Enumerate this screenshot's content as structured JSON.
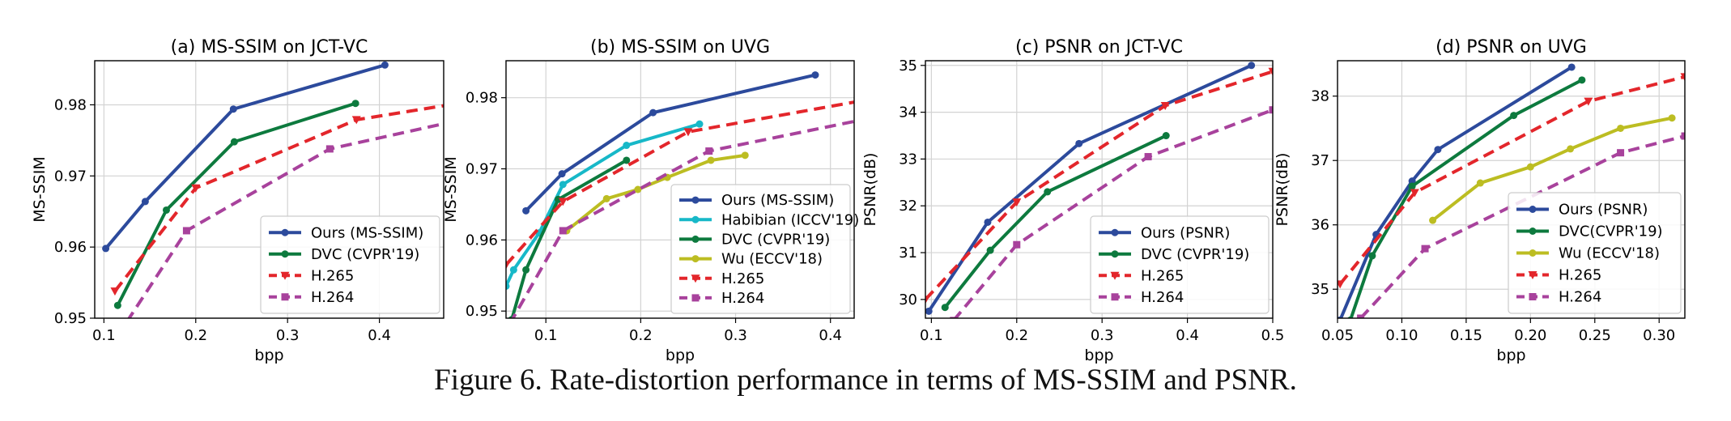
{
  "caption": "Figure 6. Rate-distortion performance in terms of MS-SSIM and PSNR.",
  "chart_data": [
    {
      "type": "line",
      "title": "(a) MS-SSIM on JCT-VC",
      "xlabel": "bpp",
      "ylabel": "MS-SSIM",
      "xlim": [
        0.09,
        0.47
      ],
      "ylim": [
        0.95,
        0.9862
      ],
      "xticks": [
        0.1,
        0.2,
        0.3,
        0.4
      ],
      "xtick_labels": [
        "0.1",
        "0.2",
        "0.3",
        "0.4"
      ],
      "yticks": [
        0.95,
        0.96,
        0.97,
        0.98
      ],
      "ytick_labels": [
        "0.95",
        "0.96",
        "0.97",
        "0.98"
      ],
      "grid": true,
      "legend_position": "lower-right",
      "series": [
        {
          "name": "Ours (MS-SSIM)",
          "color": "#2c4a9c",
          "style": "solid",
          "marker": "circle",
          "x": [
            0.102,
            0.145,
            0.241,
            0.406
          ],
          "y": [
            0.9598,
            0.9664,
            0.9794,
            0.9856
          ]
        },
        {
          "name": "DVC (CVPR'19)",
          "color": "#0d7a3e",
          "style": "solid",
          "marker": "circle",
          "x": [
            0.115,
            0.168,
            0.242,
            0.374
          ],
          "y": [
            0.9518,
            0.9652,
            0.9748,
            0.9802
          ]
        },
        {
          "name": "H.265",
          "color": "#e3262b",
          "style": "dashed",
          "marker": "triangle",
          "x": [
            0.112,
            0.2,
            0.375,
            0.5
          ],
          "y": [
            0.9538,
            0.9683,
            0.9779,
            0.9805
          ]
        },
        {
          "name": "H.264",
          "color": "#a8429c",
          "style": "dashed",
          "marker": "square",
          "x": [
            0.125,
            0.19,
            0.346,
            0.5
          ],
          "y": [
            0.9495,
            0.9623,
            0.9738,
            0.9782
          ]
        }
      ]
    },
    {
      "type": "line",
      "title": "(b) MS-SSIM on UVG",
      "xlabel": "bpp",
      "ylabel": "MS-SSIM",
      "xlim": [
        0.058,
        0.425
      ],
      "ylim": [
        0.949,
        0.9852
      ],
      "xticks": [
        0.1,
        0.2,
        0.3,
        0.4
      ],
      "xtick_labels": [
        "0.1",
        "0.2",
        "0.3",
        "0.4"
      ],
      "yticks": [
        0.95,
        0.96,
        0.97,
        0.98
      ],
      "ytick_labels": [
        "0.95",
        "0.96",
        "0.97",
        "0.98"
      ],
      "grid": true,
      "legend_position": "lower-right",
      "series": [
        {
          "name": "Ours (MS-SSIM)",
          "color": "#2c4a9c",
          "style": "solid",
          "marker": "circle",
          "x": [
            0.079,
            0.117,
            0.213,
            0.384
          ],
          "y": [
            0.9641,
            0.9693,
            0.9779,
            0.9832
          ]
        },
        {
          "name": "Habibian (ICCV'19)",
          "color": "#17b8c8",
          "style": "solid",
          "marker": "circle",
          "x": [
            0.058,
            0.066,
            0.093,
            0.118,
            0.185,
            0.262
          ],
          "y": [
            0.9535,
            0.9558,
            0.961,
            0.9678,
            0.9733,
            0.9763
          ]
        },
        {
          "name": "DVC (CVPR'19)",
          "color": "#0d7a3e",
          "style": "solid",
          "marker": "circle",
          "x": [
            0.058,
            0.064,
            0.079,
            0.113,
            0.185
          ],
          "y": [
            0.9475,
            0.9488,
            0.9558,
            0.9657,
            0.9712
          ]
        },
        {
          "name": "Wu (ECCV'18)",
          "color": "#bcbd22",
          "style": "solid",
          "marker": "circle",
          "x": [
            0.122,
            0.164,
            0.197,
            0.228,
            0.274,
            0.31
          ],
          "y": [
            0.9613,
            0.9658,
            0.9671,
            0.9688,
            0.9712,
            0.9719
          ]
        },
        {
          "name": "H.265",
          "color": "#e3262b",
          "style": "dashed",
          "marker": "triangle",
          "x": [
            0.058,
            0.118,
            0.25,
            0.43
          ],
          "y": [
            0.9565,
            0.9654,
            0.9752,
            0.9795
          ]
        },
        {
          "name": "H.264",
          "color": "#a8429c",
          "style": "dashed",
          "marker": "square",
          "x": [
            0.062,
            0.118,
            0.272,
            0.43
          ],
          "y": [
            0.9482,
            0.9613,
            0.9725,
            0.9768
          ]
        }
      ]
    },
    {
      "type": "line",
      "title": "(c) PSNR on JCT-VC",
      "xlabel": "bpp",
      "ylabel": "PSNR(dB)",
      "xlim": [
        0.093,
        0.5
      ],
      "ylim": [
        29.6,
        35.1
      ],
      "xticks": [
        0.1,
        0.2,
        0.3,
        0.4,
        0.5
      ],
      "xtick_labels": [
        "0.1",
        "0.2",
        "0.3",
        "0.4",
        "0.5"
      ],
      "yticks": [
        30,
        31,
        32,
        33,
        34,
        35
      ],
      "ytick_labels": [
        "30",
        "31",
        "32",
        "33",
        "34",
        "35"
      ],
      "grid": true,
      "legend_position": "lower-right",
      "series": [
        {
          "name": "Ours (PSNR)",
          "color": "#2c4a9c",
          "style": "solid",
          "marker": "circle",
          "x": [
            0.097,
            0.166,
            0.273,
            0.475
          ],
          "y": [
            29.75,
            31.65,
            33.33,
            35.0
          ]
        },
        {
          "name": "DVC (CVPR'19)",
          "color": "#0d7a3e",
          "style": "solid",
          "marker": "circle",
          "x": [
            0.116,
            0.169,
            0.236,
            0.375
          ],
          "y": [
            29.83,
            31.05,
            32.3,
            33.5
          ]
        },
        {
          "name": "H.265",
          "color": "#e3262b",
          "style": "dashed",
          "marker": "triangle",
          "x": [
            0.093,
            0.2,
            0.374,
            0.5
          ],
          "y": [
            30.0,
            32.08,
            34.14,
            34.87
          ]
        },
        {
          "name": "H.264",
          "color": "#a8429c",
          "style": "dashed",
          "marker": "square",
          "x": [
            0.126,
            0.2,
            0.354,
            0.5
          ],
          "y": [
            29.55,
            31.17,
            33.05,
            34.05
          ]
        }
      ]
    },
    {
      "type": "line",
      "title": "(d) PSNR on UVG",
      "xlabel": "bpp",
      "ylabel": "PSNR(dB)",
      "xlim": [
        0.05,
        0.32
      ],
      "ylim": [
        34.55,
        38.55
      ],
      "xticks": [
        0.05,
        0.1,
        0.15,
        0.2,
        0.25,
        0.3
      ],
      "xtick_labels": [
        "0.05",
        "0.10",
        "0.15",
        "0.20",
        "0.25",
        "0.30"
      ],
      "yticks": [
        35,
        36,
        37,
        38
      ],
      "ytick_labels": [
        "35",
        "36",
        "37",
        "38"
      ],
      "grid": true,
      "legend_position": "lower-right",
      "series": [
        {
          "name": "Ours (PSNR)",
          "color": "#2c4a9c",
          "style": "solid",
          "marker": "circle",
          "x": [
            0.052,
            0.08,
            0.108,
            0.128,
            0.232
          ],
          "y": [
            34.52,
            35.85,
            36.68,
            37.17,
            38.45
          ]
        },
        {
          "name": "DVC(CVPR'19)",
          "color": "#0d7a3e",
          "style": "solid",
          "marker": "circle",
          "x": [
            0.06,
            0.077,
            0.108,
            0.187,
            0.24
          ],
          "y": [
            34.52,
            35.52,
            36.6,
            37.7,
            38.25
          ]
        },
        {
          "name": "Wu (ECCV'18)",
          "color": "#bcbd22",
          "style": "solid",
          "marker": "circle",
          "x": [
            0.124,
            0.161,
            0.2,
            0.231,
            0.27,
            0.31
          ],
          "y": [
            36.07,
            36.65,
            36.9,
            37.18,
            37.5,
            37.66
          ]
        },
        {
          "name": "H.265",
          "color": "#e3262b",
          "style": "dashed",
          "marker": "triangle",
          "x": [
            0.052,
            0.11,
            0.245,
            0.32
          ],
          "y": [
            35.08,
            36.5,
            37.92,
            38.3
          ]
        },
        {
          "name": "H.264",
          "color": "#a8429c",
          "style": "dashed",
          "marker": "square",
          "x": [
            0.068,
            0.118,
            0.27,
            0.32
          ],
          "y": [
            34.55,
            35.63,
            37.12,
            37.38
          ]
        }
      ]
    }
  ]
}
